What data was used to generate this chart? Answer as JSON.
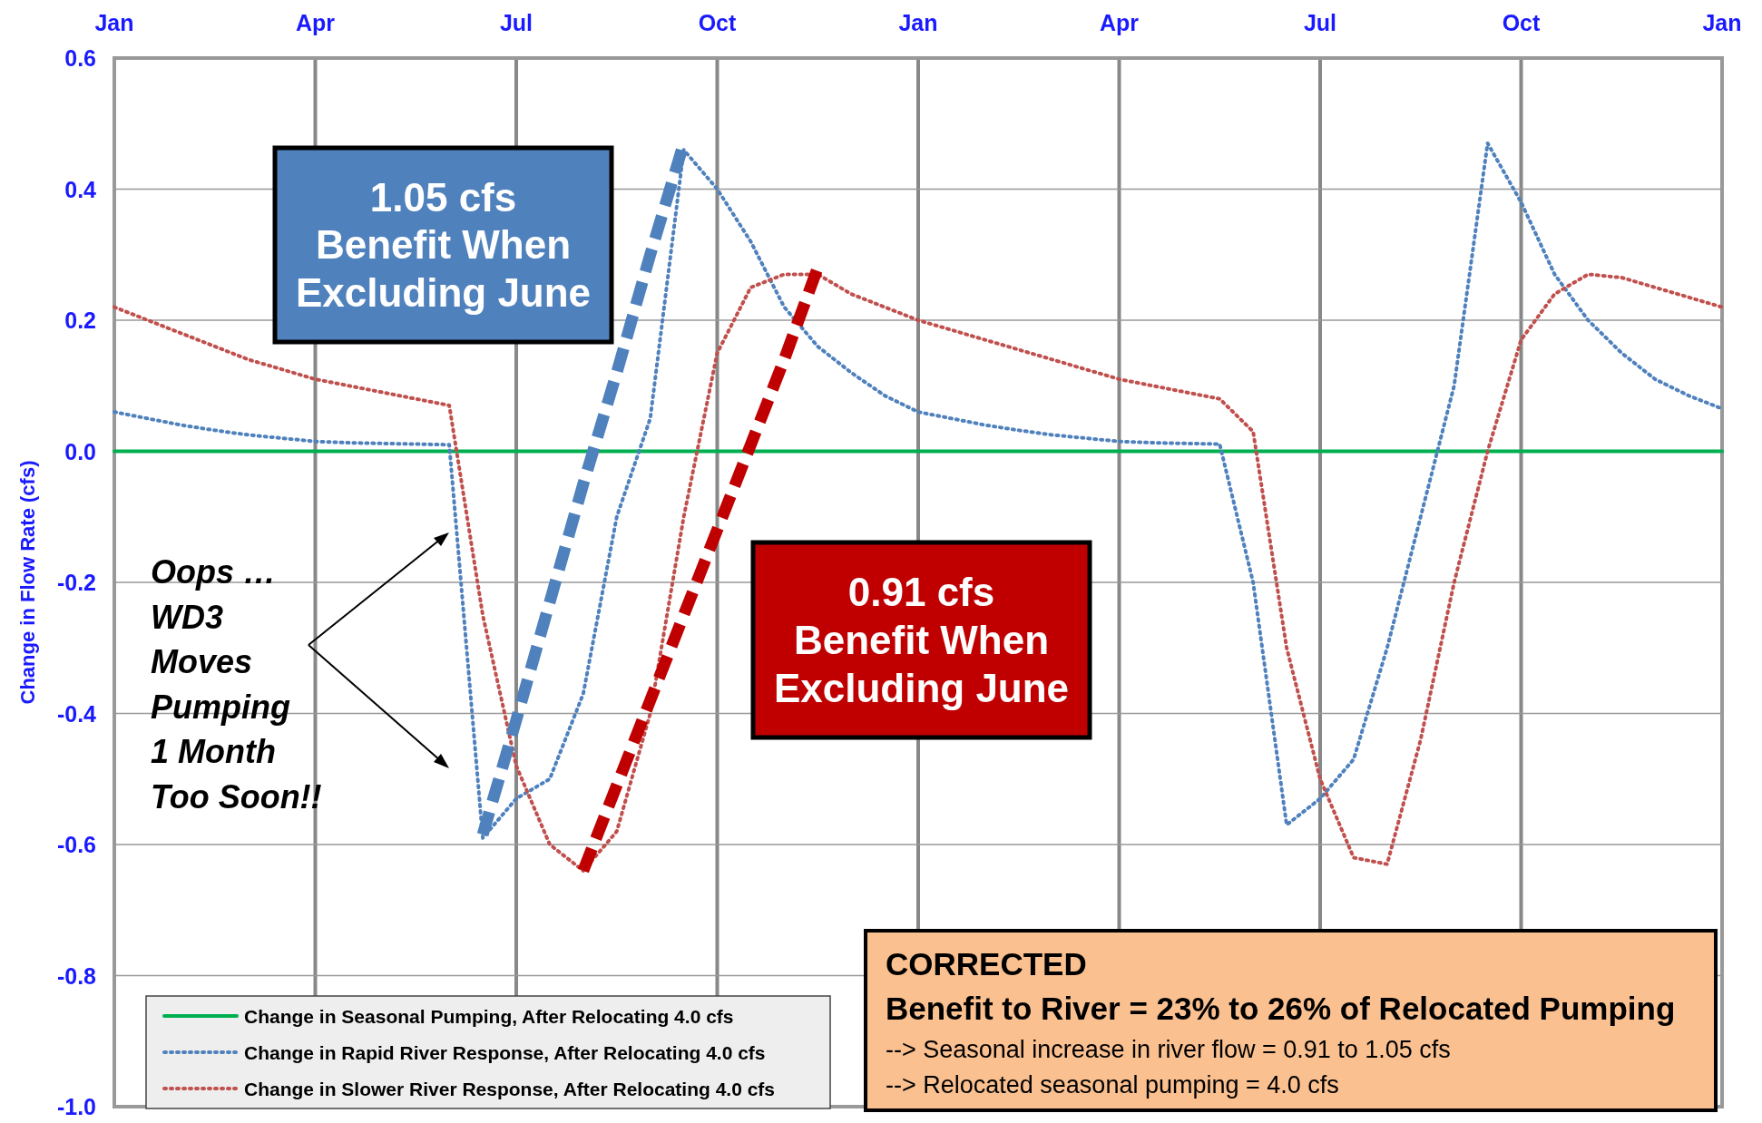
{
  "chart_data": {
    "type": "line",
    "ylabel": "Change in Flow Rate (cfs)",
    "categories": [
      "Jan",
      null,
      null,
      null,
      null,
      null,
      "Apr",
      null,
      null,
      null,
      null,
      null,
      "Jul",
      null,
      null,
      null,
      null,
      null,
      "Oct",
      null,
      null,
      null,
      null,
      null,
      "Jan",
      null,
      null,
      null,
      null,
      null,
      "Apr",
      null,
      null,
      null,
      null,
      null,
      "Jul",
      null,
      null,
      null,
      null,
      null,
      "Oct",
      null,
      null,
      null,
      null,
      null,
      "Jan"
    ],
    "ylim": [
      -1.0,
      0.6
    ],
    "yticks": [
      {
        "value": -1.0,
        "label": "-1.0"
      },
      {
        "value": -0.8,
        "label": "-0.8"
      },
      {
        "value": -0.6,
        "label": "-0.6"
      },
      {
        "value": -0.4,
        "label": "-0.4"
      },
      {
        "value": -0.2,
        "label": "-0.2"
      },
      {
        "value": 0,
        "label": "0.0"
      },
      {
        "value": 0.2,
        "label": "0.2"
      },
      {
        "value": 0.4,
        "label": "0.4"
      },
      {
        "value": 0.6,
        "label": "0.6"
      }
    ],
    "grid": true,
    "legend": "bottom left",
    "series": [
      {
        "name": "Change in Seasonal Pumping, After Relocating 4.0 cfs",
        "color": "#00b050",
        "line_style": "solid",
        "values": [
          0,
          0,
          0,
          0,
          0,
          0,
          0,
          0,
          0,
          0,
          0,
          0,
          0,
          0,
          0,
          0,
          0,
          0,
          0,
          0,
          0,
          0,
          0,
          0,
          0,
          0,
          0,
          0,
          0,
          0,
          0,
          0,
          0,
          0,
          0,
          0,
          0,
          0,
          0,
          0,
          0,
          0,
          0,
          0,
          0,
          0,
          0,
          0,
          0
        ]
      },
      {
        "name": "Change in Rapid River Response, After Relocating 4.0 cfs",
        "color": "#4f81bd",
        "line_style": "dotted",
        "values": [
          0.06,
          0.05,
          0.04,
          0.032,
          0.025,
          0.02,
          0.015,
          0.013,
          0.012,
          0.011,
          0.01,
          -0.59,
          -0.53,
          -0.5,
          -0.37,
          -0.1,
          0.05,
          0.46,
          0.4,
          0.32,
          0.22,
          0.16,
          0.12,
          0.085,
          0.06,
          0.05,
          0.04,
          0.032,
          0.025,
          0.02,
          0.015,
          0.013,
          0.012,
          0.011,
          -0.2,
          -0.57,
          -0.53,
          -0.47,
          -0.3,
          -0.1,
          0.1,
          0.47,
          0.38,
          0.27,
          0.2,
          0.15,
          0.11,
          0.085,
          0.065
        ]
      },
      {
        "name": "Change in Slower River Response, After Relocating 4.0 cfs",
        "color": "#c0504d",
        "line_style": "dotted",
        "values": [
          0.22,
          0.2,
          0.18,
          0.16,
          0.14,
          0.125,
          0.11,
          0.1,
          0.09,
          0.08,
          0.07,
          -0.25,
          -0.48,
          -0.6,
          -0.64,
          -0.58,
          -0.4,
          -0.1,
          0.15,
          0.25,
          0.27,
          0.27,
          0.24,
          0.22,
          0.2,
          0.185,
          0.17,
          0.155,
          0.14,
          0.125,
          0.11,
          0.1,
          0.09,
          0.08,
          0.03,
          -0.3,
          -0.5,
          -0.62,
          -0.63,
          -0.44,
          -0.2,
          0,
          0.17,
          0.24,
          0.27,
          0.265,
          0.25,
          0.235,
          0.22
        ]
      },
      {
        "color": "#4f81bd",
        "line_style": "dashed",
        "values": [
          null,
          null,
          null,
          null,
          null,
          null,
          null,
          null,
          null,
          null,
          null,
          -0.585,
          -0.41,
          -0.23,
          -0.05,
          0.12,
          0.3,
          0.47,
          null,
          null,
          null,
          null,
          null,
          null,
          null,
          null,
          null,
          null,
          null,
          null,
          null,
          null,
          null,
          null,
          null,
          null,
          null,
          null,
          null,
          null,
          null,
          null,
          null,
          null,
          null,
          null,
          null,
          null,
          null
        ]
      },
      {
        "color": "#c00000",
        "line_style": "dashed",
        "values": [
          null,
          null,
          null,
          null,
          null,
          null,
          null,
          null,
          null,
          null,
          null,
          null,
          null,
          null,
          -0.64,
          -0.51,
          -0.38,
          -0.25,
          -0.12,
          0.01,
          0.14,
          0.28,
          null,
          null,
          null,
          null,
          null,
          null,
          null,
          null,
          null,
          null,
          null,
          null,
          null,
          null,
          null,
          null,
          null,
          null,
          null,
          null,
          null,
          null,
          null,
          null,
          null,
          null,
          null
        ]
      }
    ],
    "annotations": [
      "1.05 cfs\nBenefit When\nExcluding June",
      "0.91 cfs\nBenefit When\nExcluding June",
      "Oops …\nWD3\nMoves\nPumping\n1 Month\nToo Soon!!",
      "CORRECTED",
      "Benefit to River = 23% to 26% of Relocated Pumping",
      "--> Seasonal increase in river flow = 0.91 to 1.05 cfs",
      "--> Relocated seasonal pumping = 4.0 cfs"
    ]
  }
}
